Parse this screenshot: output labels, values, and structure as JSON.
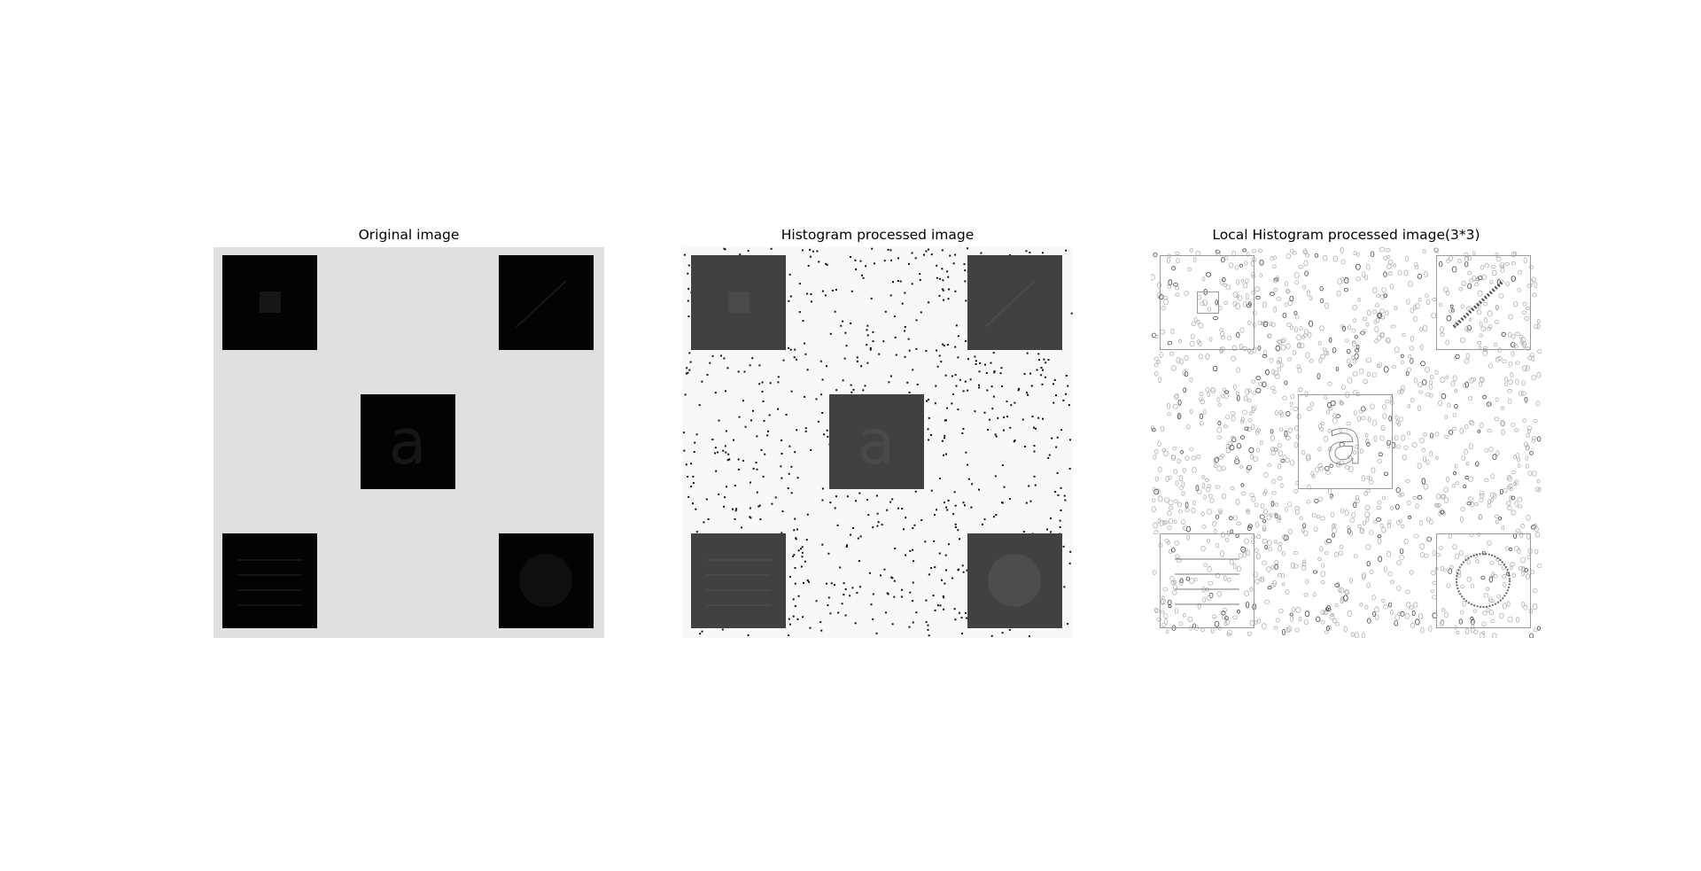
{
  "figure": {
    "panels": [
      {
        "title": "Original image"
      },
      {
        "title": "Histogram processed image"
      },
      {
        "title": "Local Histogram processed image(3*3)"
      }
    ],
    "colors": {
      "background": "#ffffff",
      "original_bg": "#e0e0e0",
      "original_square": "#030303",
      "original_feature": "#161616",
      "hist_bg": "#f8f8f8",
      "hist_square": "#414141",
      "hist_feature": "#4a4a4a",
      "hist_noise": "#000000",
      "local_bg": "#ffffff",
      "local_outline": "#9a9a9a",
      "local_noise": "#b8b8b8"
    },
    "feature_glyph": "a"
  }
}
